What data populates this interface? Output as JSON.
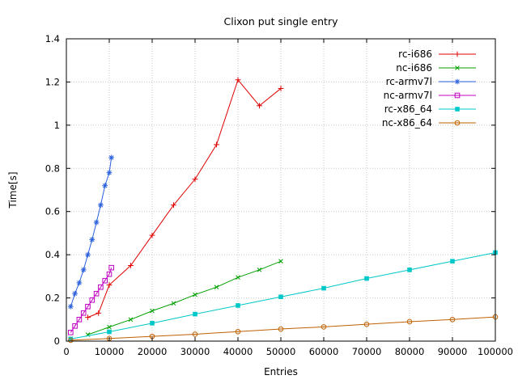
{
  "title": "Clixon put single entry",
  "chart_data": {
    "type": "line",
    "title": "Clixon put single entry",
    "xlabel": "Entries",
    "ylabel": "Time[s]",
    "xlim": [
      0,
      100000
    ],
    "ylim": [
      0,
      1.4
    ],
    "grid": true,
    "legend_position": "top-right-inside",
    "xtick_values": [
      0,
      10000,
      20000,
      30000,
      40000,
      50000,
      60000,
      70000,
      80000,
      90000,
      100000
    ],
    "xtick_labels": [
      "0",
      "10000",
      "20000",
      "30000",
      "40000",
      "50000",
      "60000",
      "70000",
      "80000",
      "90000",
      "100000"
    ],
    "ytick_values": [
      0,
      0.2,
      0.4,
      0.6,
      0.8,
      1.0,
      1.2,
      1.4
    ],
    "ytick_labels": [
      "0",
      "0.2",
      "0.4",
      "0.6",
      "0.8",
      "1",
      "1.2",
      "1.4"
    ],
    "grid_color": "#c8c8c8",
    "border_color": "#000000",
    "series": [
      {
        "name": "rc-i686",
        "color": "#e00000",
        "marker": "plus",
        "points": [
          [
            5000,
            0.11
          ],
          [
            7500,
            0.13
          ],
          [
            10000,
            0.26
          ],
          [
            15000,
            0.35
          ],
          [
            20000,
            0.49
          ],
          [
            25000,
            0.63
          ],
          [
            30000,
            0.75
          ],
          [
            35000,
            0.91
          ],
          [
            40000,
            1.21
          ],
          [
            45000,
            1.09
          ],
          [
            50000,
            1.17
          ]
        ]
      },
      {
        "name": "nc-i686",
        "color": "#00a000",
        "marker": "cross",
        "points": [
          [
            5000,
            0.03
          ],
          [
            10000,
            0.065
          ],
          [
            15000,
            0.1
          ],
          [
            20000,
            0.14
          ],
          [
            25000,
            0.175
          ],
          [
            30000,
            0.215
          ],
          [
            35000,
            0.25
          ],
          [
            40000,
            0.295
          ],
          [
            45000,
            0.33
          ],
          [
            50000,
            0.37
          ]
        ]
      },
      {
        "name": "rc-armv7l",
        "color": "#2b60de",
        "marker": "star",
        "points": [
          [
            1000,
            0.16
          ],
          [
            2000,
            0.22
          ],
          [
            3000,
            0.27
          ],
          [
            4000,
            0.33
          ],
          [
            5000,
            0.4
          ],
          [
            6000,
            0.47
          ],
          [
            7000,
            0.55
          ],
          [
            8000,
            0.63
          ],
          [
            9000,
            0.72
          ],
          [
            10000,
            0.78
          ],
          [
            10500,
            0.85
          ]
        ]
      },
      {
        "name": "nc-armv7l",
        "color": "#c000c0",
        "marker": "square-open",
        "points": [
          [
            1000,
            0.04
          ],
          [
            2000,
            0.07
          ],
          [
            3000,
            0.1
          ],
          [
            4000,
            0.13
          ],
          [
            5000,
            0.16
          ],
          [
            6000,
            0.19
          ],
          [
            7000,
            0.22
          ],
          [
            8000,
            0.25
          ],
          [
            9000,
            0.28
          ],
          [
            10000,
            0.31
          ],
          [
            10500,
            0.34
          ]
        ]
      },
      {
        "name": "rc-x86_64",
        "color": "#00c8c8",
        "marker": "square-filled",
        "points": [
          [
            1000,
            0.01
          ],
          [
            10000,
            0.043
          ],
          [
            20000,
            0.083
          ],
          [
            30000,
            0.125
          ],
          [
            40000,
            0.165
          ],
          [
            50000,
            0.205
          ],
          [
            60000,
            0.245
          ],
          [
            70000,
            0.29
          ],
          [
            80000,
            0.33
          ],
          [
            90000,
            0.37
          ],
          [
            100000,
            0.41
          ]
        ]
      },
      {
        "name": "nc-x86_64",
        "color": "#c06000",
        "marker": "circle-open",
        "points": [
          [
            1000,
            0.004
          ],
          [
            10000,
            0.012
          ],
          [
            20000,
            0.022
          ],
          [
            30000,
            0.032
          ],
          [
            40000,
            0.044
          ],
          [
            50000,
            0.056
          ],
          [
            60000,
            0.066
          ],
          [
            70000,
            0.078
          ],
          [
            80000,
            0.09
          ],
          [
            90000,
            0.1
          ],
          [
            100000,
            0.112
          ]
        ]
      }
    ]
  }
}
